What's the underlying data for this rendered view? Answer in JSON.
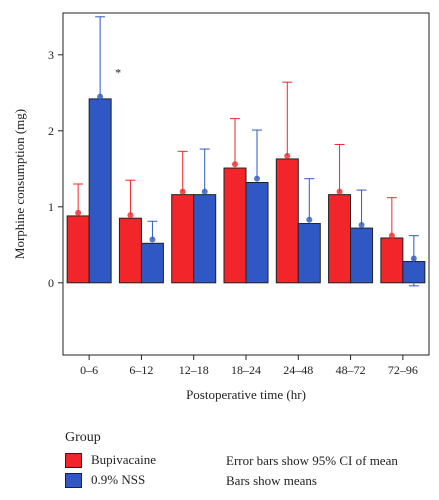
{
  "chart_data": {
    "type": "bar",
    "title": "",
    "xlabel": "Postoperative time (hr)",
    "ylabel": "Morphine consumption (mg)",
    "ylim": [
      -0.95,
      3.55
    ],
    "yticks": [
      0,
      1,
      2,
      3
    ],
    "categories": [
      "0–6",
      "6–12",
      "12–18",
      "18–24",
      "24–48",
      "48–72",
      "72–96"
    ],
    "series": [
      {
        "name": "Bupivacaine",
        "color": "#f2252b",
        "values": [
          0.88,
          0.85,
          1.16,
          1.51,
          1.63,
          1.16,
          0.59
        ],
        "means": [
          0.92,
          0.89,
          1.2,
          1.56,
          1.67,
          1.2,
          0.62
        ],
        "error_upper": [
          1.3,
          1.35,
          1.73,
          2.16,
          2.64,
          1.82,
          1.12
        ]
      },
      {
        "name": "0.9% NSS",
        "color": "#2f58c4",
        "values": [
          2.42,
          0.52,
          1.16,
          1.32,
          0.78,
          0.72,
          0.28
        ],
        "means": [
          2.45,
          0.57,
          1.2,
          1.37,
          0.83,
          0.76,
          0.32
        ],
        "error_upper": [
          3.5,
          0.81,
          1.76,
          2.01,
          1.37,
          1.22,
          0.62
        ],
        "error_lower": [
          null,
          null,
          null,
          null,
          null,
          null,
          -0.04
        ]
      }
    ],
    "annotations": [
      {
        "text": "*",
        "category": "0–6",
        "series": "0.9% NSS"
      }
    ],
    "grid": false,
    "legend_position": "bottom-left"
  },
  "legend": {
    "title": "Group",
    "items": [
      {
        "label": "Bupivacaine",
        "color": "#f2252b"
      },
      {
        "label": "0.9% NSS",
        "color": "#2f58c4"
      }
    ],
    "notes": [
      "Error bars show 95% CI of mean",
      "Bars show means"
    ]
  }
}
